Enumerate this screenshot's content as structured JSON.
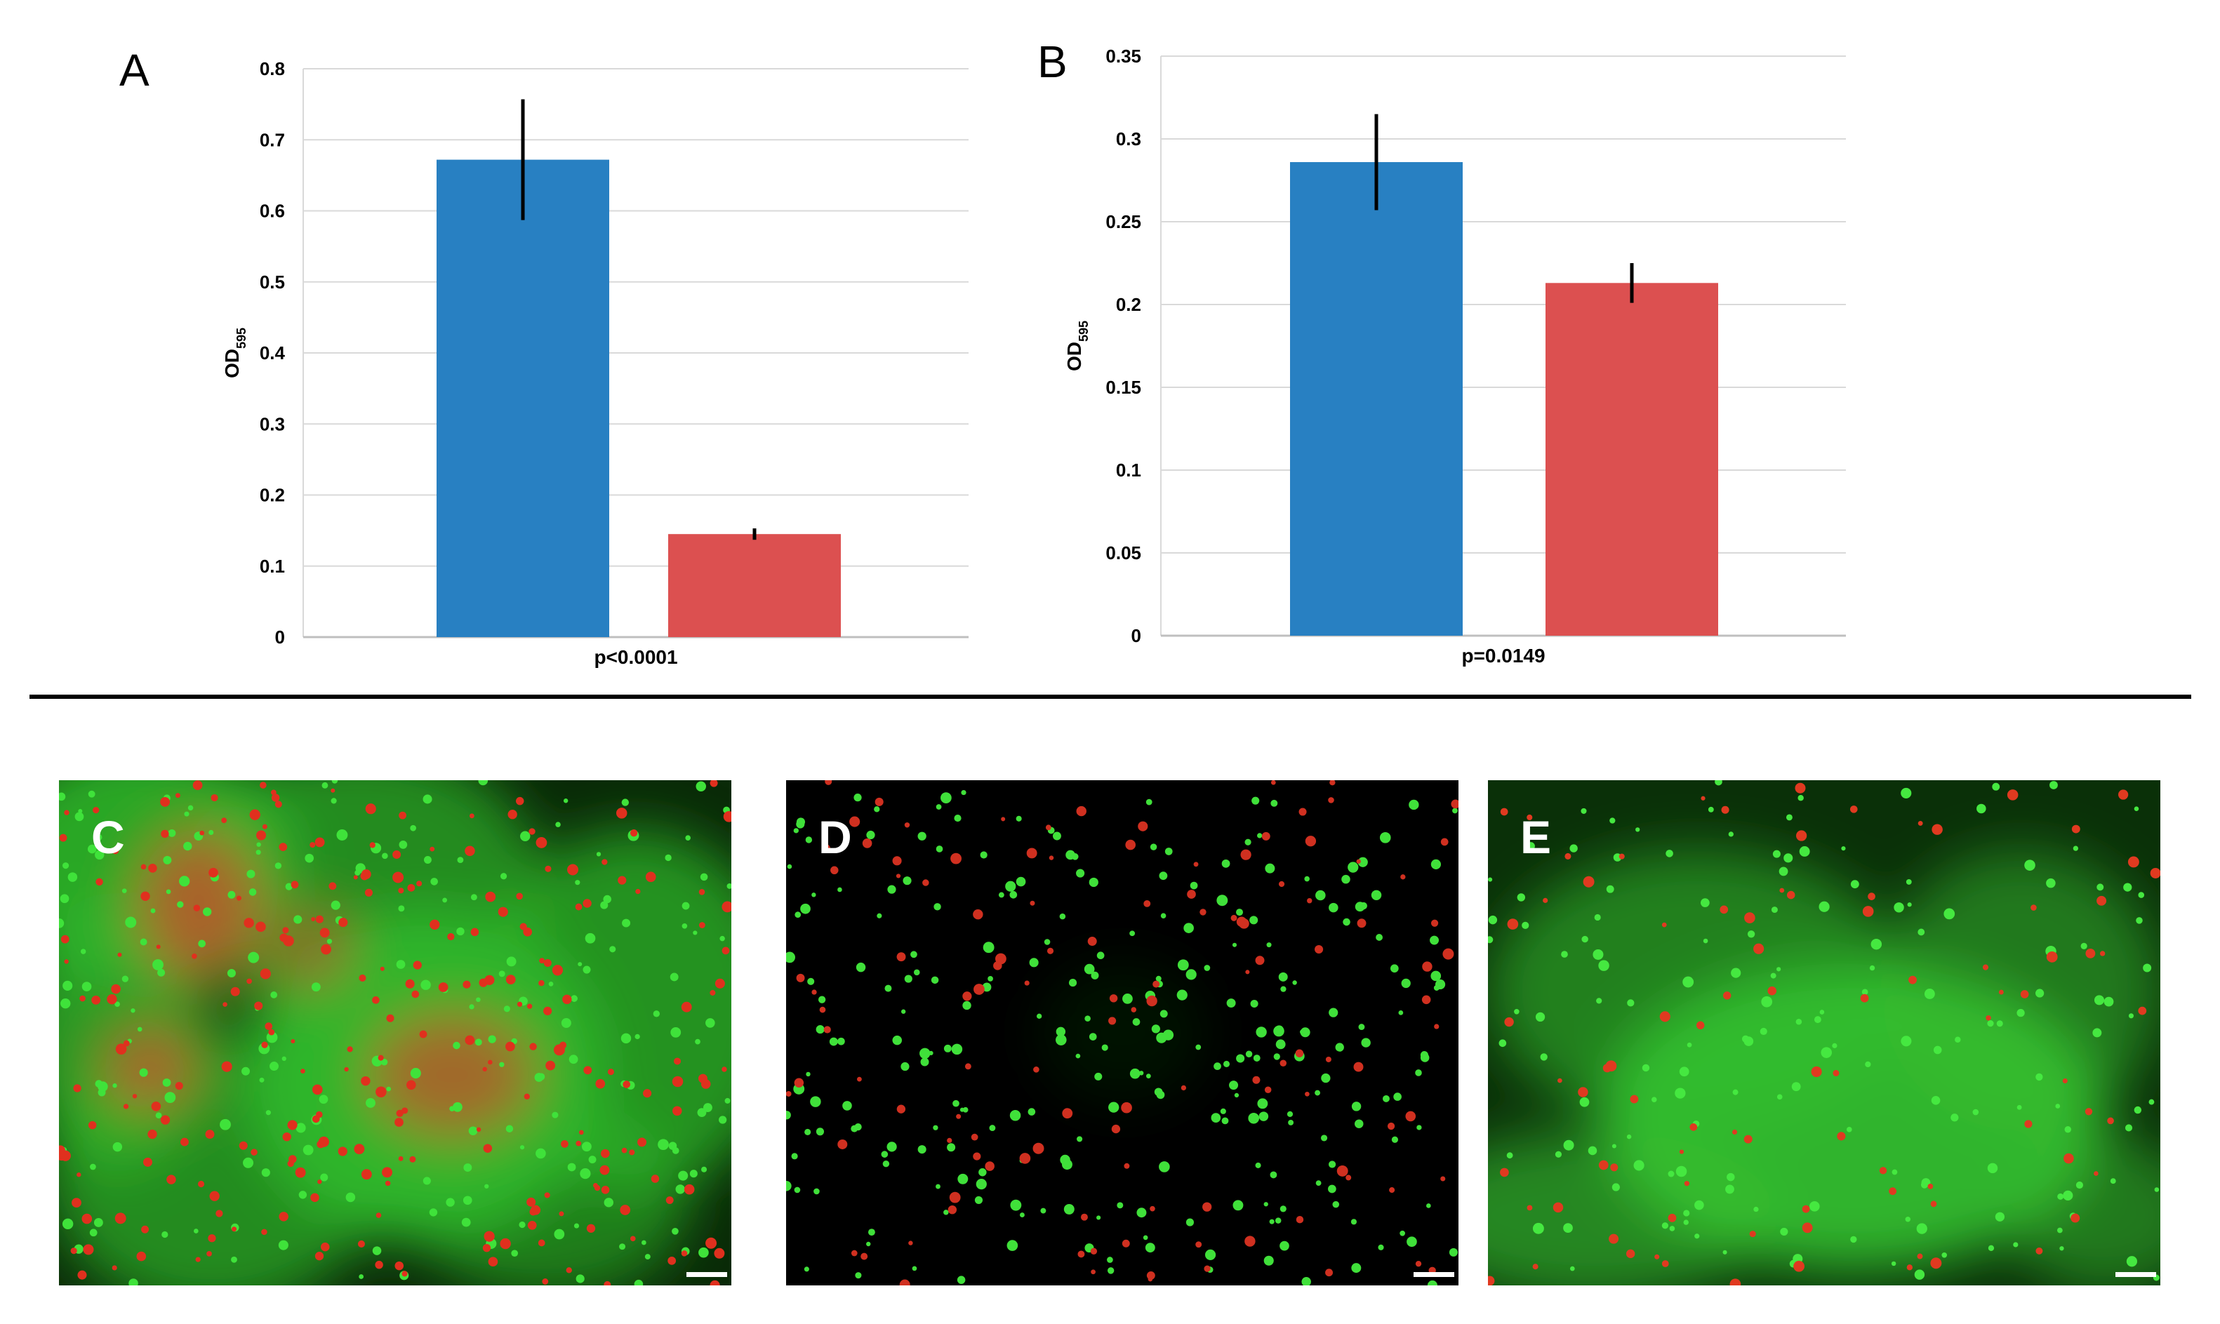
{
  "panels_top": [
    {
      "letter": "A"
    },
    {
      "letter": "B"
    }
  ],
  "chart_data": [
    {
      "type": "bar",
      "panel": "A",
      "categories": [
        ""
      ],
      "series": [
        {
          "values": [
            0.672
          ],
          "error": [
            0.085
          ],
          "color": "#2880c2"
        },
        {
          "values": [
            0.145
          ],
          "error": [
            0.008
          ],
          "color": "#dc5050"
        }
      ],
      "xlabel": "p<0.0001",
      "ylabel": "OD595",
      "ylim": [
        0,
        0.8
      ],
      "yticks": [
        0,
        0.1,
        0.2,
        0.3,
        0.4,
        0.5,
        0.6,
        0.7,
        0.8
      ],
      "grid": true
    },
    {
      "type": "bar",
      "panel": "B",
      "categories": [
        ""
      ],
      "series": [
        {
          "values": [
            0.286
          ],
          "error": [
            0.029
          ],
          "color": "#2880c2"
        },
        {
          "values": [
            0.213
          ],
          "error": [
            0.012
          ],
          "color": "#dc5050"
        }
      ],
      "xlabel": "p=0.0149",
      "ylabel": "OD595",
      "ylim": [
        0,
        0.35
      ],
      "yticks": [
        0,
        0.05,
        0.1,
        0.15,
        0.2,
        0.25,
        0.3,
        0.35
      ],
      "grid": true
    }
  ],
  "micrographs": [
    {
      "letter": "C",
      "bg_color": "#0a2a08",
      "cloud_color": "#2fb52a",
      "dot_red": "#e0301e",
      "dot_green": "#3fe23a"
    },
    {
      "letter": "D",
      "bg_color": "#000000",
      "cloud_color": "#1e7a1a",
      "dot_red": "#d03020",
      "dot_green": "#40e03a"
    },
    {
      "letter": "E",
      "bg_color": "#0a3008",
      "cloud_color": "#35c230",
      "dot_red": "#e03a20",
      "dot_green": "#45e840"
    }
  ]
}
